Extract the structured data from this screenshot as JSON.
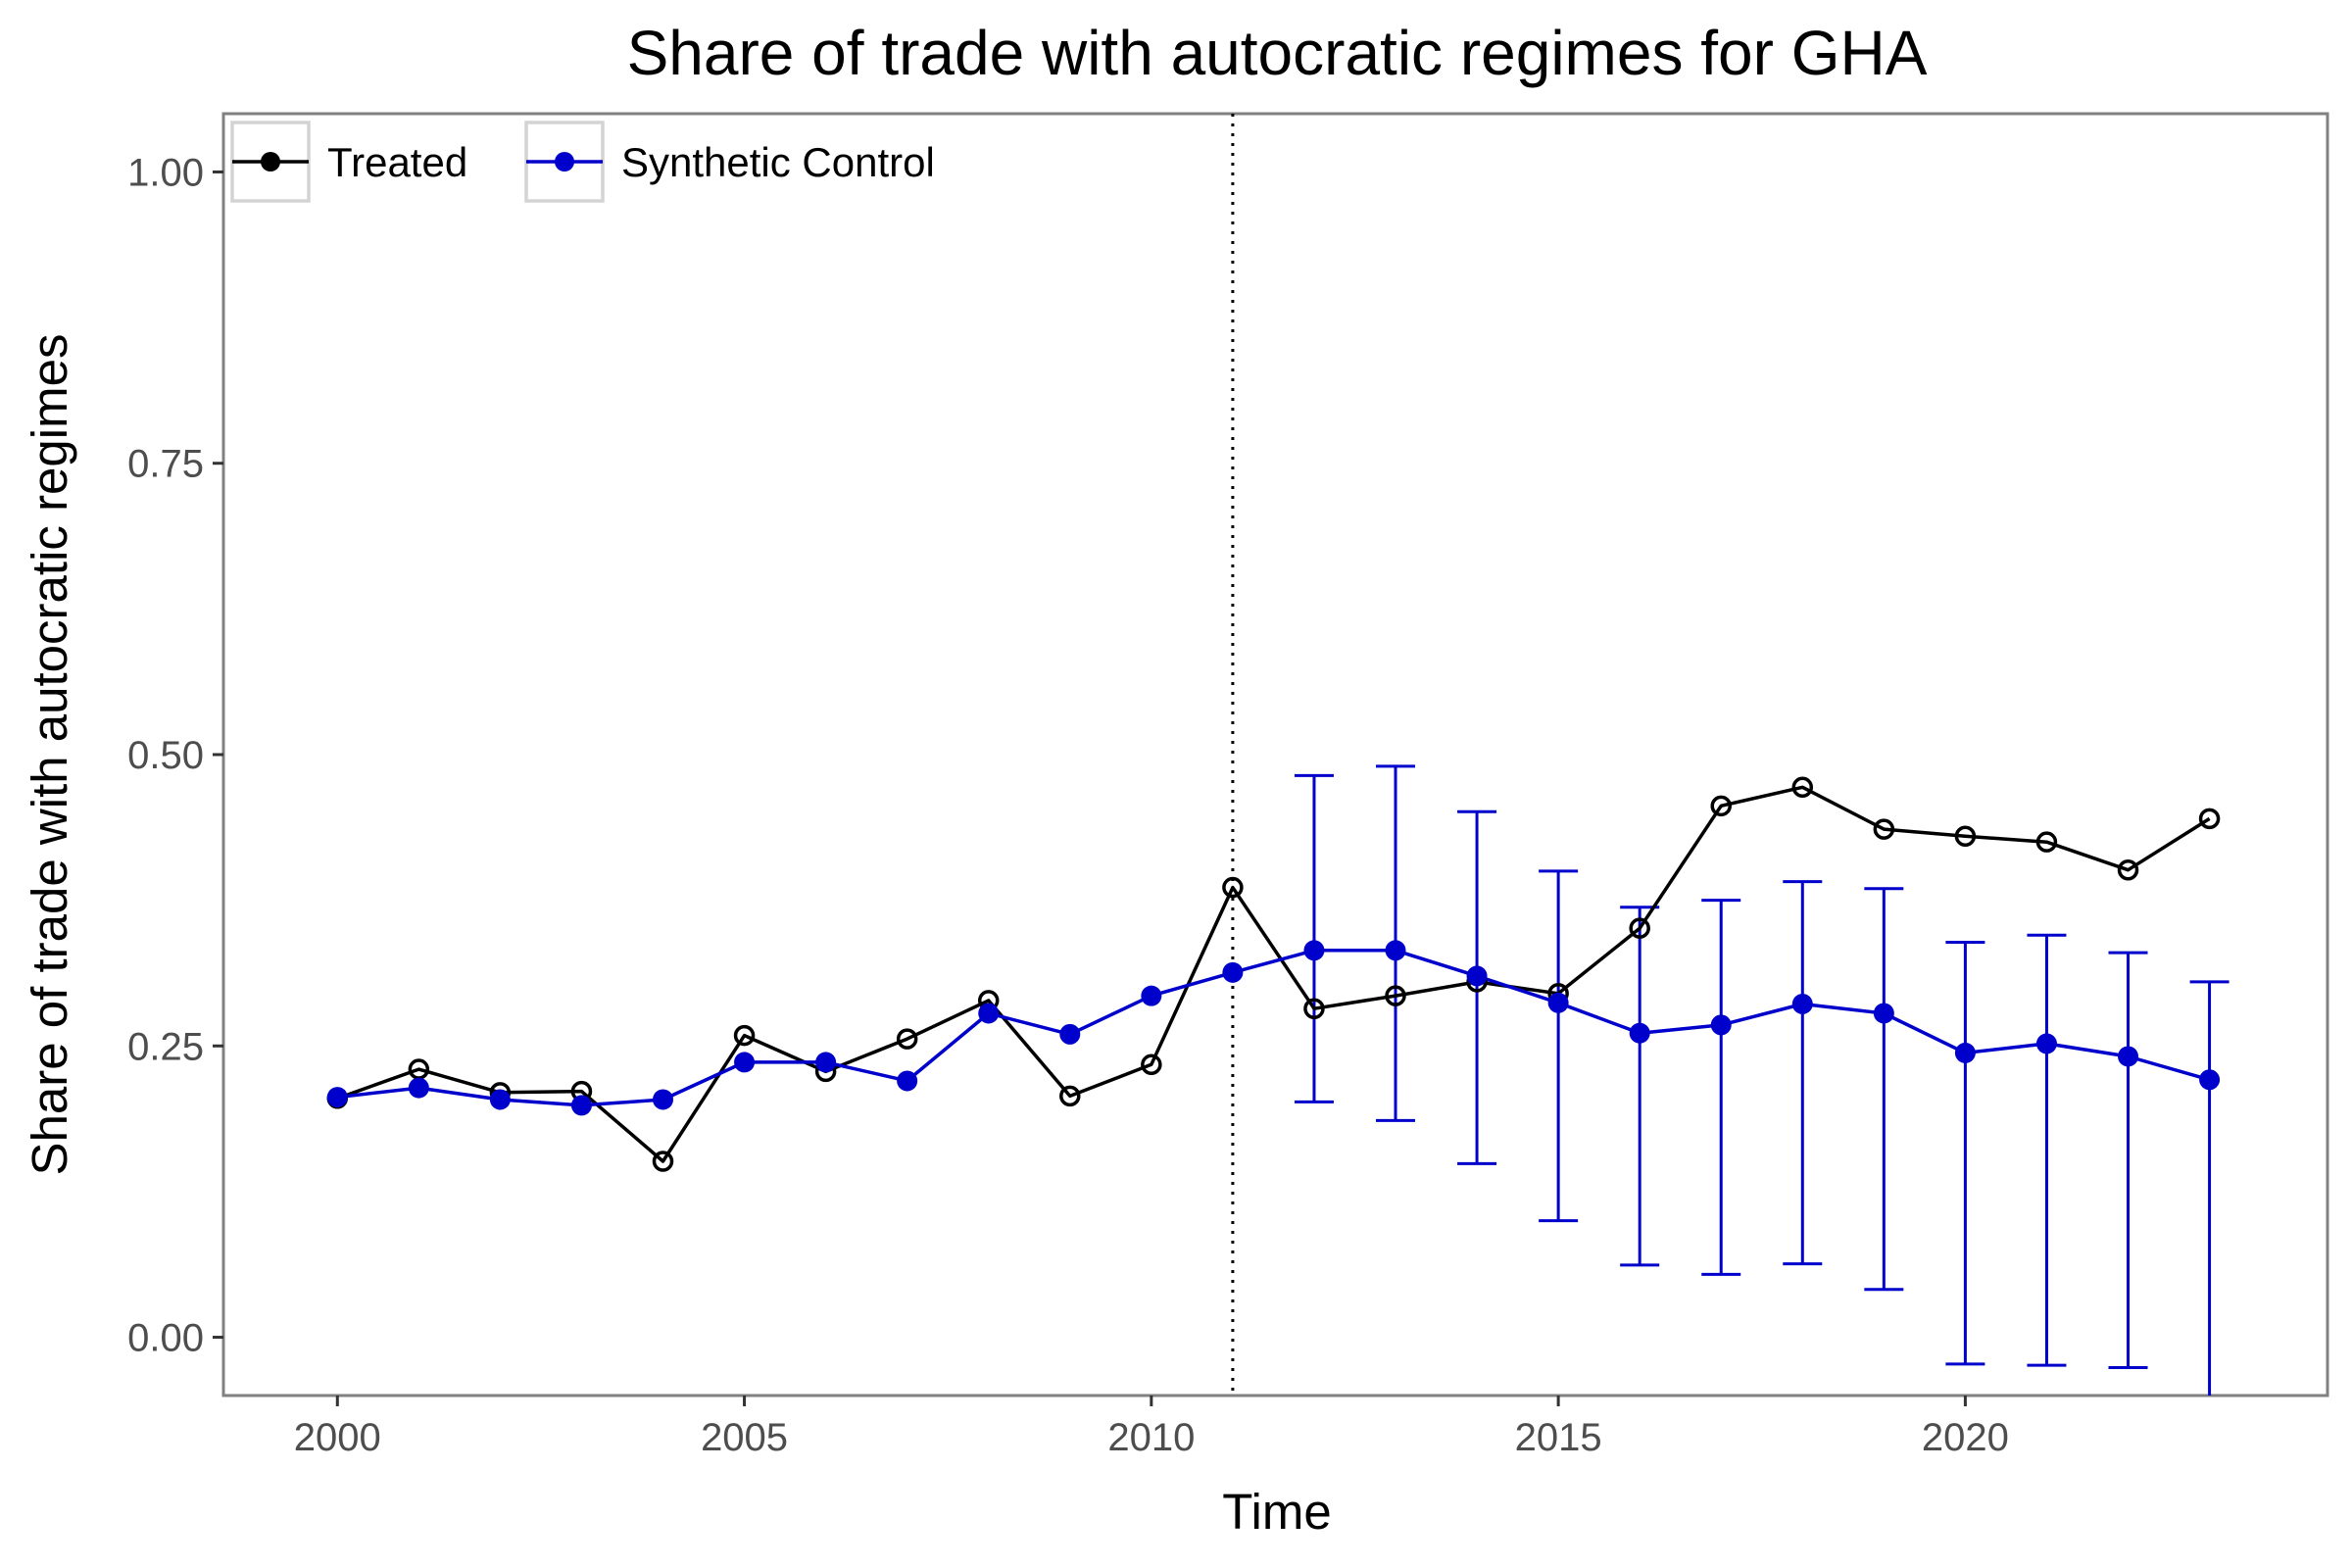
{
  "chart_data": {
    "type": "line",
    "title": "Share of trade with autocratic regimes for GHA",
    "xlabel": "Time",
    "ylabel": "Share of trade with autocratic regimes",
    "xlim": [
      1998.6,
      2024.45
    ],
    "ylim": [
      -0.05,
      1.05
    ],
    "x_ticks": [
      2000,
      2005,
      2010,
      2015,
      2020
    ],
    "x_tick_labels": [
      "2000",
      "2005",
      "2010",
      "2015",
      "2020"
    ],
    "y_ticks": [
      0,
      0.25,
      0.5,
      0.75,
      1.0
    ],
    "y_tick_labels": [
      "0.00",
      "0.25",
      "0.50",
      "0.75",
      "1.00"
    ],
    "treatment_year": 2011,
    "grid": false,
    "legend_position": "top-left",
    "x": [
      2000,
      2001,
      2002,
      2003,
      2004,
      2005,
      2006,
      2007,
      2008,
      2009,
      2010,
      2011,
      2012,
      2013,
      2014,
      2015,
      2016,
      2017,
      2018,
      2019,
      2020,
      2021,
      2022,
      2023
    ],
    "series": [
      {
        "name": "Treated",
        "color": "#000000",
        "marker": "open-circle",
        "values": [
          0.205,
          0.23,
          0.21,
          0.211,
          0.151,
          0.259,
          0.228,
          0.256,
          0.289,
          0.207,
          0.234,
          0.386,
          0.282,
          0.293,
          0.305,
          0.295,
          0.351,
          0.456,
          0.472,
          0.436,
          0.43,
          0.425,
          0.401,
          0.445
        ]
      },
      {
        "name": "Synthetic Control",
        "color": "#0000cc",
        "marker": "filled-circle",
        "values": [
          0.206,
          0.214,
          0.204,
          0.199,
          0.204,
          0.236,
          0.236,
          0.22,
          0.278,
          0.26,
          0.293,
          0.313,
          0.332,
          0.332,
          0.31,
          0.287,
          0.261,
          0.268,
          0.286,
          0.278,
          0.244,
          0.252,
          0.241,
          0.221
        ],
        "error_bars": {
          "x": [
            2012,
            2013,
            2014,
            2015,
            2016,
            2017,
            2018,
            2019,
            2020,
            2021,
            2022,
            2023
          ],
          "lower": [
            0.202,
            0.186,
            0.149,
            0.1,
            0.062,
            0.054,
            0.063,
            0.041,
            -0.023,
            -0.024,
            -0.026,
            -0.06
          ],
          "upper": [
            0.482,
            0.49,
            0.451,
            0.4,
            0.369,
            0.375,
            0.391,
            0.385,
            0.339,
            0.345,
            0.33,
            0.305
          ]
        }
      }
    ]
  }
}
